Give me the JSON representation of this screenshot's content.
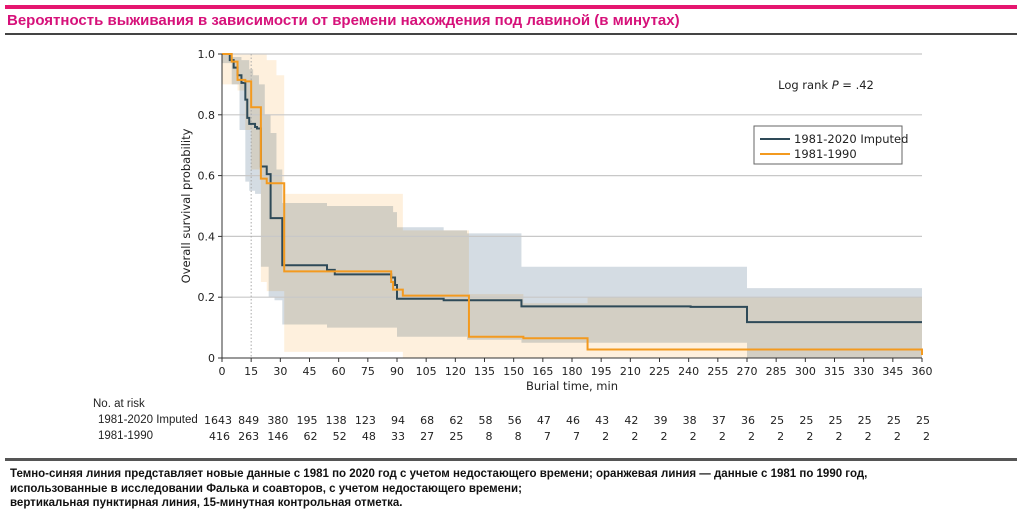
{
  "header": {
    "title": "Вероятность выживания в зависимости от времени нахождения под лавиной (в минутах)"
  },
  "chart_data": {
    "type": "line",
    "subtype": "kaplan-meier step",
    "xlabel": "Burial time, min",
    "ylabel": "Overall survival probability",
    "xlim": [
      0,
      360
    ],
    "ylim": [
      0,
      1.0
    ],
    "xticks": [
      0,
      15,
      30,
      45,
      60,
      75,
      90,
      105,
      120,
      135,
      150,
      165,
      180,
      195,
      210,
      225,
      240,
      255,
      270,
      285,
      300,
      315,
      330,
      345,
      360
    ],
    "yticks": [
      0,
      0.2,
      0.4,
      0.6,
      0.8,
      1.0
    ],
    "ytick_labels": [
      "0",
      "0.2",
      "0.4",
      "0.6",
      "0.8",
      "1.0"
    ],
    "grid": "horizontal",
    "reference_line": {
      "x": 15,
      "style": "dotted",
      "label": "15-min checkpoint"
    },
    "annotation": {
      "prefix": "Log rank ",
      "italic": "P",
      "suffix": " = .42"
    },
    "legend_position": "top-right",
    "series": [
      {
        "name": "1981-2020 Imputed",
        "color": "#2e4a58",
        "band_color": "#cdd6de",
        "steps": [
          [
            0,
            1.0
          ],
          [
            4,
            0.98
          ],
          [
            6,
            0.955
          ],
          [
            8,
            0.93
          ],
          [
            10,
            0.905
          ],
          [
            12,
            0.85
          ],
          [
            13,
            0.79
          ],
          [
            14,
            0.77
          ],
          [
            17,
            0.76
          ],
          [
            18,
            0.755
          ],
          [
            20,
            0.63
          ],
          [
            23,
            0.605
          ],
          [
            25,
            0.46
          ],
          [
            31,
            0.305
          ],
          [
            54,
            0.29
          ],
          [
            58,
            0.275
          ],
          [
            87,
            0.265
          ],
          [
            89,
            0.24
          ],
          [
            90,
            0.195
          ],
          [
            114,
            0.19
          ],
          [
            154,
            0.17
          ],
          [
            241,
            0.168
          ],
          [
            270,
            0.118
          ],
          [
            360,
            0.118
          ]
        ],
        "ci_upper": [
          [
            0,
            1.0
          ],
          [
            5,
            0.99
          ],
          [
            10,
            0.98
          ],
          [
            14,
            0.95
          ],
          [
            16,
            0.93
          ],
          [
            19,
            0.9
          ],
          [
            22,
            0.8
          ],
          [
            25,
            0.74
          ],
          [
            28,
            0.62
          ],
          [
            31,
            0.51
          ],
          [
            54,
            0.5
          ],
          [
            88,
            0.48
          ],
          [
            90,
            0.43
          ],
          [
            114,
            0.42
          ],
          [
            126,
            0.41
          ],
          [
            154,
            0.3
          ],
          [
            241,
            0.3
          ],
          [
            270,
            0.23
          ],
          [
            360,
            0.23
          ]
        ],
        "ci_lower": [
          [
            0,
            0.97
          ],
          [
            5,
            0.9
          ],
          [
            9,
            0.75
          ],
          [
            12,
            0.58
          ],
          [
            14,
            0.55
          ],
          [
            17,
            0.54
          ],
          [
            20,
            0.3
          ],
          [
            24,
            0.2
          ],
          [
            27,
            0.19
          ],
          [
            31,
            0.11
          ],
          [
            54,
            0.1
          ],
          [
            88,
            0.1
          ],
          [
            90,
            0.07
          ],
          [
            126,
            0.06
          ],
          [
            154,
            0.05
          ],
          [
            241,
            0.05
          ],
          [
            270,
            0.0
          ],
          [
            360,
            0.0
          ]
        ]
      },
      {
        "name": "1981-1990",
        "color": "#f39a1f",
        "band_color": "#fde9cf",
        "steps": [
          [
            0,
            1.0
          ],
          [
            5,
            0.975
          ],
          [
            8,
            0.915
          ],
          [
            12,
            0.91
          ],
          [
            15,
            0.825
          ],
          [
            20,
            0.59
          ],
          [
            23,
            0.575
          ],
          [
            32,
            0.285
          ],
          [
            87,
            0.25
          ],
          [
            88,
            0.225
          ],
          [
            93,
            0.205
          ],
          [
            127,
            0.07
          ],
          [
            155,
            0.065
          ],
          [
            188,
            0.028
          ],
          [
            360,
            0.01
          ]
        ],
        "ci_upper": [
          [
            0,
            1.0
          ],
          [
            15,
            1.0
          ],
          [
            23,
            0.98
          ],
          [
            28,
            0.93
          ],
          [
            32,
            0.54
          ],
          [
            88,
            0.54
          ],
          [
            93,
            0.42
          ],
          [
            127,
            0.42
          ],
          [
            127,
            0.21
          ],
          [
            155,
            0.18
          ],
          [
            188,
            0.2
          ],
          [
            270,
            0.2
          ],
          [
            360,
            0.2
          ]
        ],
        "ci_lower": [
          [
            0,
            0.9
          ],
          [
            8,
            0.88
          ],
          [
            12,
            0.75
          ],
          [
            15,
            0.62
          ],
          [
            20,
            0.25
          ],
          [
            23,
            0.22
          ],
          [
            32,
            0.02
          ],
          [
            88,
            0.02
          ],
          [
            93,
            0.0
          ],
          [
            360,
            0.0
          ]
        ]
      }
    ],
    "risk_table": {
      "title": "No. at risk",
      "times": [
        0,
        15,
        30,
        45,
        60,
        75,
        90,
        105,
        120,
        135,
        150,
        165,
        180,
        195,
        210,
        225,
        240,
        255,
        270,
        285,
        300,
        315,
        330,
        345,
        360
      ],
      "rows": [
        {
          "label": "1981-2020 Imputed",
          "values": [
            1643,
            849,
            380,
            195,
            138,
            123,
            94,
            68,
            62,
            58,
            56,
            47,
            46,
            43,
            42,
            39,
            38,
            37,
            36,
            25,
            25,
            25,
            25,
            25,
            25
          ]
        },
        {
          "label": "1981-1990",
          "values": [
            416,
            263,
            146,
            62,
            52,
            48,
            33,
            27,
            25,
            8,
            8,
            7,
            7,
            2,
            2,
            2,
            2,
            2,
            2,
            2,
            2,
            2,
            2,
            2,
            2
          ]
        }
      ]
    }
  },
  "caption": {
    "lines": [
      "Темно-синяя линия представляет новые данные с 1981 по 2020 год с учетом недостающего времени; оранжевая линия — данные с 1981 по 1990 год,",
      "использованные в исследовании Фалька и соавторов, с учетом недостающего времени;",
      "вертикальная пунктирная линия, 15-минутная контрольная отметка."
    ]
  }
}
